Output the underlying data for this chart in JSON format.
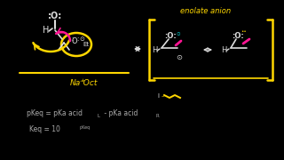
{
  "bg": "#000000",
  "yellow": "#FFD700",
  "white": "#DDDDDD",
  "pink": "#FF1493",
  "magenta": "#CC00CC",
  "cyan": "#00CCCC",
  "gray": "#AAAAAA",
  "enolate_text": "enolate anion",
  "na_oct_text": "Na⁺⁻Oct",
  "pkeq_text": "pKeq = pKa acid",
  "pkeq_sub_l": "L",
  "pkeq_mid": " - pKa acid",
  "pkeq_sub_r": "R",
  "keq_text": "Keq = 10",
  "keq_sup": "pKeq"
}
